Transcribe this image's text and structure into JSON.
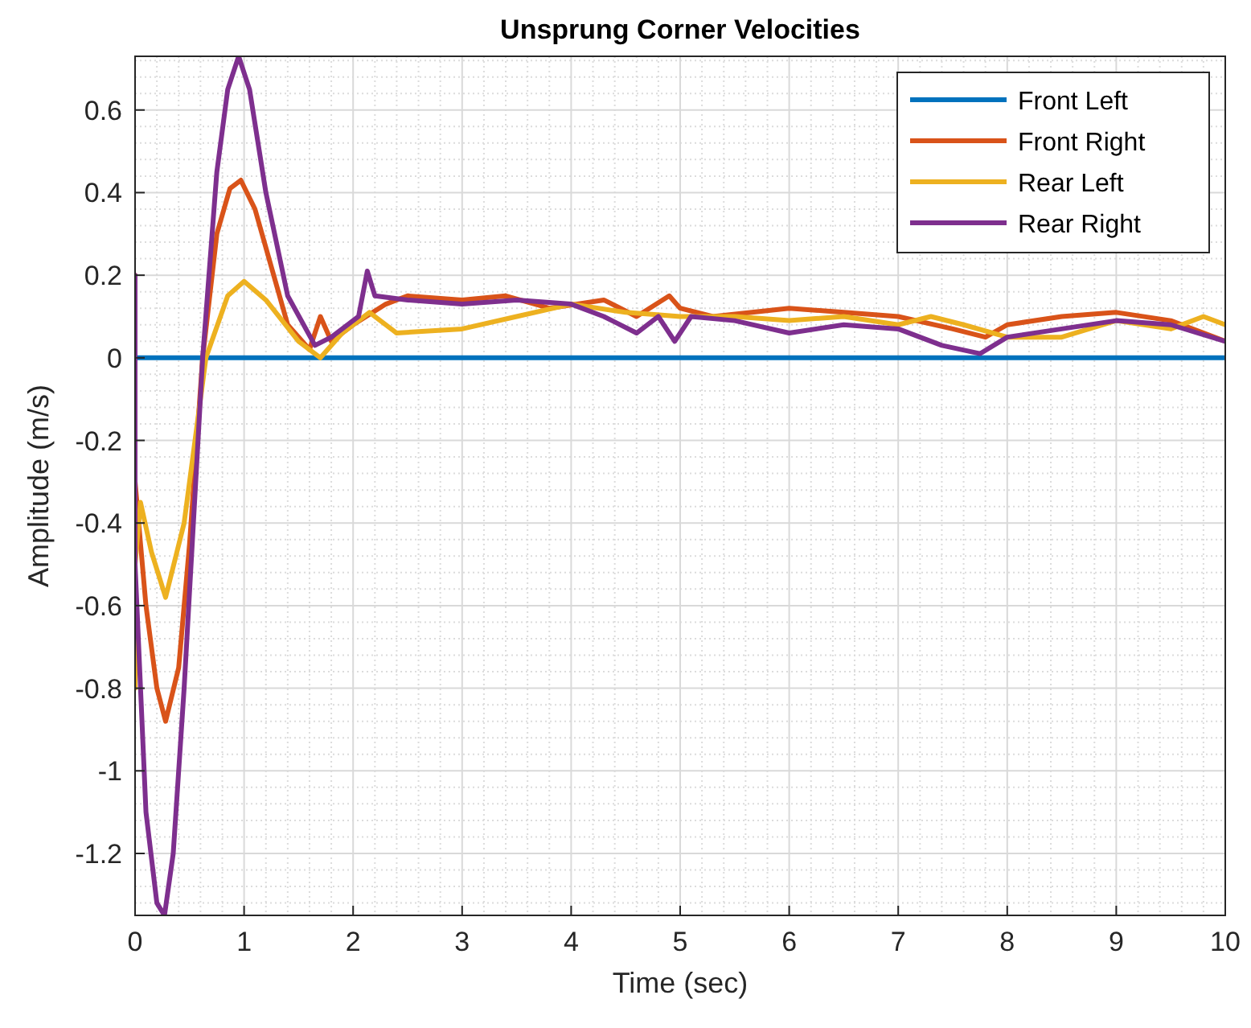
{
  "chart_data": {
    "type": "line",
    "title": "Unsprung Corner Velocities",
    "xlabel": "Time (sec)",
    "ylabel": "Amplitude (m/s)",
    "xlim": [
      0,
      10
    ],
    "ylim": [
      -1.35,
      0.73
    ],
    "xticks": [
      0,
      1,
      2,
      3,
      4,
      5,
      6,
      7,
      8,
      9,
      10
    ],
    "yticks": [
      -1.2,
      -1,
      -0.8,
      -0.6,
      -0.4,
      -0.2,
      0,
      0.2,
      0.4,
      0.6
    ],
    "grid": true,
    "legend": "top right",
    "line_style": "solid",
    "marker": "none",
    "series": [
      {
        "name": "Front Left",
        "color": "#0072bd",
        "x": [
          0,
          10
        ],
        "values": [
          0,
          0
        ]
      },
      {
        "name": "Front Right",
        "color": "#d95319",
        "x": [
          0,
          0,
          0.1,
          0.2,
          0.28,
          0.4,
          0.5,
          0.62,
          0.75,
          0.87,
          0.97,
          1.1,
          1.25,
          1.4,
          1.6,
          1.7,
          1.8,
          2.0,
          2.3,
          2.5,
          3,
          3.4,
          3.8,
          4.3,
          4.6,
          4.9,
          5.0,
          5.3,
          6,
          6.5,
          7,
          7.5,
          7.8,
          8,
          8.5,
          9,
          9.5,
          10
        ],
        "values": [
          0.2,
          -0.3,
          -0.6,
          -0.8,
          -0.88,
          -0.75,
          -0.45,
          0,
          0.3,
          0.41,
          0.43,
          0.36,
          0.22,
          0.08,
          0.02,
          0.1,
          0.04,
          0.08,
          0.13,
          0.15,
          0.14,
          0.15,
          0.12,
          0.14,
          0.1,
          0.15,
          0.12,
          0.1,
          0.12,
          0.11,
          0.1,
          0.07,
          0.05,
          0.08,
          0.1,
          0.11,
          0.09,
          0.04
        ]
      },
      {
        "name": "Rear Left",
        "color": "#edb120",
        "x": [
          0,
          0,
          0.05,
          0.15,
          0.28,
          0.45,
          0.65,
          0.85,
          1.0,
          1.2,
          1.5,
          1.7,
          1.9,
          2.15,
          2.4,
          3,
          3.5,
          4,
          4.5,
          5,
          5.5,
          6,
          6.5,
          7,
          7.3,
          7.6,
          8,
          8.5,
          9,
          9.5,
          9.8,
          10
        ],
        "values": [
          -0.8,
          -0.5,
          -0.35,
          -0.47,
          -0.58,
          -0.4,
          0,
          0.15,
          0.185,
          0.14,
          0.04,
          0,
          0.06,
          0.11,
          0.06,
          0.07,
          0.1,
          0.13,
          0.11,
          0.1,
          0.1,
          0.09,
          0.1,
          0.08,
          0.1,
          0.08,
          0.05,
          0.05,
          0.09,
          0.07,
          0.1,
          0.08
        ]
      },
      {
        "name": "Rear Right",
        "color": "#7e2f8e",
        "x": [
          0,
          0,
          0.1,
          0.2,
          0.27,
          0.35,
          0.45,
          0.62,
          0.75,
          0.85,
          0.95,
          1.05,
          1.2,
          1.4,
          1.65,
          1.8,
          2.05,
          2.13,
          2.2,
          2.5,
          3,
          3.5,
          4,
          4.3,
          4.6,
          4.8,
          4.95,
          5.1,
          5.5,
          6,
          6.5,
          7,
          7.4,
          7.75,
          8,
          8.5,
          9,
          9.5,
          10
        ],
        "values": [
          0.2,
          -0.5,
          -1.1,
          -1.32,
          -1.35,
          -1.2,
          -0.8,
          0,
          0.45,
          0.65,
          0.73,
          0.65,
          0.4,
          0.15,
          0.03,
          0.05,
          0.1,
          0.21,
          0.15,
          0.14,
          0.13,
          0.14,
          0.13,
          0.1,
          0.06,
          0.1,
          0.04,
          0.1,
          0.09,
          0.06,
          0.08,
          0.07,
          0.03,
          0.01,
          0.05,
          0.07,
          0.09,
          0.08,
          0.04
        ]
      }
    ]
  }
}
